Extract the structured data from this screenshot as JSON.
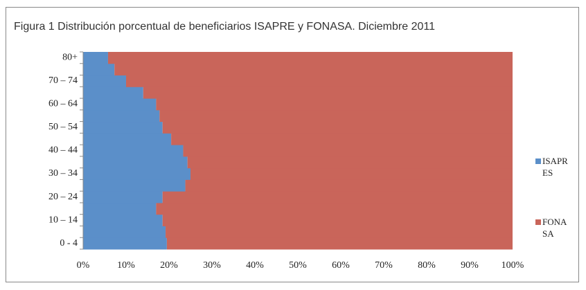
{
  "chart_data": {
    "type": "stacked-barh",
    "title": "Figura 1 Distribución porcentual de beneficiarios ISAPRE y FONASA. Diciembre 2011",
    "categories": [
      "0 - 4",
      null,
      "10 – 14",
      null,
      "20 – 24",
      null,
      "30 – 34",
      null,
      "40 – 44",
      null,
      "50 – 54",
      null,
      "60 – 64",
      null,
      "70 – 74",
      null,
      "80+"
    ],
    "series": [
      {
        "name": "ISAPRES",
        "color": "#5b8fc9",
        "values": [
          19.5,
          19.2,
          18.5,
          17.0,
          18.5,
          23.8,
          25.0,
          24.3,
          23.3,
          20.5,
          18.5,
          17.8,
          17.0,
          14.0,
          10.0,
          7.3,
          5.8
        ]
      },
      {
        "name": "FONASA",
        "color": "#c9655a",
        "values": [
          80.5,
          80.8,
          81.5,
          83.0,
          81.5,
          76.2,
          75.0,
          75.7,
          76.7,
          79.5,
          81.5,
          82.2,
          83.0,
          86.0,
          90.0,
          92.7,
          94.2
        ]
      }
    ],
    "xlim": [
      0,
      100
    ],
    "xticks": [
      {
        "value": 0,
        "label": "0%"
      },
      {
        "value": 10,
        "label": "10%"
      },
      {
        "value": 20,
        "label": "20%"
      },
      {
        "value": 30,
        "label": "30%"
      },
      {
        "value": 40,
        "label": "40%"
      },
      {
        "value": 50,
        "label": "50%"
      },
      {
        "value": 60,
        "label": "60%"
      },
      {
        "value": 70,
        "label": "70%"
      },
      {
        "value": 80,
        "label": "80%"
      },
      {
        "value": 90,
        "label": "90%"
      },
      {
        "value": 100,
        "label": "100%"
      }
    ]
  }
}
